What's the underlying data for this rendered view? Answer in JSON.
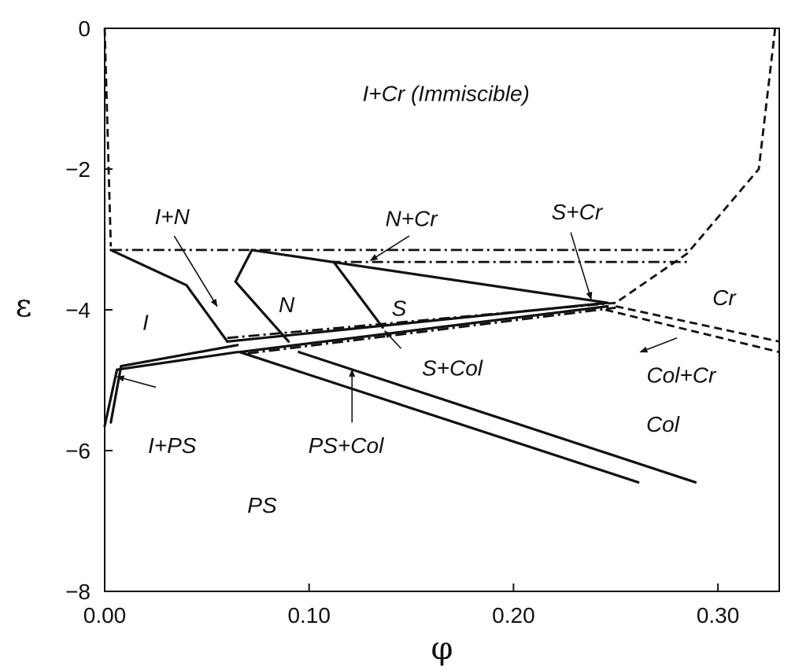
{
  "chart_data": {
    "type": "line",
    "title": "",
    "xlabel": "φ",
    "ylabel": "ε",
    "xlim": [
      0.0,
      0.33
    ],
    "ylim": [
      -8,
      0
    ],
    "x_ticks": [
      {
        "value": 0.0,
        "label": "0.00"
      },
      {
        "value": 0.1,
        "label": "0.10"
      },
      {
        "value": 0.2,
        "label": "0.20"
      },
      {
        "value": 0.3,
        "label": "0.30"
      }
    ],
    "y_ticks": [
      {
        "value": 0,
        "label": "0"
      },
      {
        "value": -2,
        "label": "−2"
      },
      {
        "value": -4,
        "label": "−4"
      },
      {
        "value": -6,
        "label": "−6"
      },
      {
        "value": -8,
        "label": "−8"
      }
    ],
    "grid": false,
    "series": [
      {
        "style": "dashed",
        "points": [
          [
            0.0,
            0.0
          ],
          [
            0.003,
            -3.1
          ]
        ]
      },
      {
        "style": "dashed",
        "points": [
          [
            0.328,
            0.0
          ],
          [
            0.32,
            -2.0
          ],
          [
            0.285,
            -3.2
          ],
          [
            0.25,
            -3.9
          ]
        ]
      },
      {
        "style": "dashdot",
        "points": [
          [
            0.003,
            -3.15
          ],
          [
            0.285,
            -3.15
          ]
        ]
      },
      {
        "style": "dashdot",
        "points": [
          [
            0.11,
            -3.32
          ],
          [
            0.285,
            -3.32
          ]
        ]
      },
      {
        "style": "solid",
        "points": [
          [
            0.003,
            -3.15
          ],
          [
            0.04,
            -3.65
          ],
          [
            0.06,
            -4.45
          ]
        ]
      },
      {
        "style": "solid",
        "points": [
          [
            0.072,
            -3.15
          ],
          [
            0.246,
            -3.9
          ]
        ]
      },
      {
        "style": "solid",
        "points": [
          [
            0.072,
            -3.15
          ],
          [
            0.064,
            -3.6
          ],
          [
            0.09,
            -4.45
          ]
        ]
      },
      {
        "style": "solid",
        "points": [
          [
            0.112,
            -3.32
          ],
          [
            0.136,
            -4.25
          ]
        ]
      },
      {
        "style": "solid",
        "points": [
          [
            0.06,
            -4.45
          ],
          [
            0.246,
            -3.9
          ]
        ]
      },
      {
        "style": "solid",
        "points": [
          [
            0.066,
            -4.6
          ],
          [
            0.246,
            -3.95
          ]
        ]
      },
      {
        "style": "solid",
        "points": [
          [
            0.003,
            -5.6
          ],
          [
            0.008,
            -4.8
          ],
          [
            0.065,
            -4.5
          ]
        ]
      },
      {
        "style": "solid",
        "points": [
          [
            0.0,
            -5.65
          ],
          [
            0.006,
            -4.85
          ],
          [
            0.065,
            -4.6
          ]
        ]
      },
      {
        "style": "solid",
        "points": [
          [
            0.066,
            -4.6
          ],
          [
            0.261,
            -6.45
          ]
        ]
      },
      {
        "style": "solid",
        "points": [
          [
            0.095,
            -4.6
          ],
          [
            0.289,
            -6.45
          ]
        ]
      },
      {
        "style": "dashed",
        "points": [
          [
            0.25,
            -3.95
          ],
          [
            0.33,
            -4.45
          ]
        ]
      },
      {
        "style": "dashed",
        "points": [
          [
            0.245,
            -4.0
          ],
          [
            0.33,
            -4.6
          ]
        ]
      },
      {
        "style": "dashdot",
        "points": [
          [
            0.06,
            -4.4
          ],
          [
            0.25,
            -3.9
          ]
        ]
      },
      {
        "style": "dashdot",
        "points": [
          [
            0.07,
            -4.62
          ],
          [
            0.25,
            -3.97
          ]
        ]
      }
    ],
    "annotations": [
      {
        "text": "I+Cr (Immiscible)",
        "x": 0.167,
        "y": -0.95
      },
      {
        "text": "I+N",
        "x": 0.033,
        "y": -2.7
      },
      {
        "text": "N+Cr",
        "x": 0.15,
        "y": -2.73
      },
      {
        "text": "S+Cr",
        "x": 0.231,
        "y": -2.63
      },
      {
        "text": "N",
        "x": 0.089,
        "y": -3.95
      },
      {
        "text": "S",
        "x": 0.144,
        "y": -4.0
      },
      {
        "text": "Cr",
        "x": 0.303,
        "y": -3.85
      },
      {
        "text": "I",
        "x": 0.02,
        "y": -4.2
      },
      {
        "text": "S+Col",
        "x": 0.17,
        "y": -4.85
      },
      {
        "text": "Col+Cr",
        "x": 0.282,
        "y": -4.95
      },
      {
        "text": "I+PS",
        "x": 0.033,
        "y": -5.95
      },
      {
        "text": "PS+Col",
        "x": 0.118,
        "y": -5.95
      },
      {
        "text": "Col",
        "x": 0.273,
        "y": -5.65
      },
      {
        "text": "PS",
        "x": 0.077,
        "y": -6.8
      }
    ],
    "arrows": [
      {
        "from": [
          0.034,
          -2.95
        ],
        "to": [
          0.055,
          -3.95
        ]
      },
      {
        "from": [
          0.149,
          -2.95
        ],
        "to": [
          0.13,
          -3.3
        ]
      },
      {
        "from": [
          0.228,
          -2.9
        ],
        "to": [
          0.238,
          -3.85
        ]
      },
      {
        "from": [
          0.025,
          -5.1
        ],
        "to": [
          0.006,
          -4.95
        ]
      },
      {
        "from": [
          0.121,
          -5.6
        ],
        "to": [
          0.121,
          -4.85
        ]
      },
      {
        "from": [
          0.145,
          -4.55
        ],
        "to": [
          0.137,
          -4.3
        ]
      },
      {
        "from": [
          0.28,
          -4.4
        ],
        "to": [
          0.262,
          -4.6
        ]
      }
    ]
  }
}
